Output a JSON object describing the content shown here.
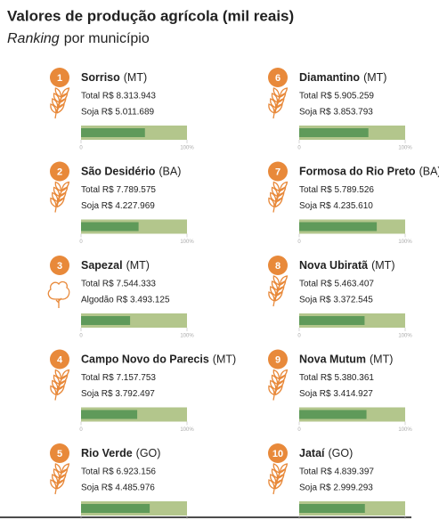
{
  "chart_data": {
    "type": "ranking",
    "title": "Valores de produção agrícola (mil reais)",
    "subtitle_em": "Ranking",
    "subtitle_rest": "por município",
    "xlim": [
      0,
      100
    ],
    "xticks": [
      0,
      {
        "value": 100,
        "label": "100%"
      }
    ],
    "bar_color": "#5f9a5a",
    "track_color": "#b3c68c",
    "badge_color": "#e8893a",
    "items": [
      {
        "rank": "1",
        "name": "Sorriso",
        "state": "(MT)",
        "total": "Total R$ 8.313.943",
        "crop": "Soja R$ 5.011.689",
        "share": 60.3
      },
      {
        "rank": "2",
        "name": "São Desidério",
        "state": "(BA)",
        "total": "Total R$ 7.789.575",
        "crop": "Soja R$ 4.227.969",
        "share": 54.3
      },
      {
        "rank": "3",
        "name": "Sapezal",
        "state": "(MT)",
        "total": "Total R$ 7.544.333",
        "crop": "Algodão R$ 3.493.125",
        "share": 46.3
      },
      {
        "rank": "4",
        "name": "Campo Novo do Parecis",
        "state": "(MT)",
        "total": "Total R$ 7.157.753",
        "crop": "Soja R$ 3.792.497",
        "share": 53.0
      },
      {
        "rank": "5",
        "name": "Rio Verde",
        "state": "(GO)",
        "total": "Total R$ 6.923.156",
        "crop": "Soja R$ 4.485.976",
        "share": 64.8
      },
      {
        "rank": "6",
        "name": "Diamantino",
        "state": "(MT)",
        "total": "Total R$ 5.905.259",
        "crop": "Soja R$ 3.853.793",
        "share": 65.3
      },
      {
        "rank": "7",
        "name": "Formosa do Rio Preto",
        "state": "(BA)",
        "total": "Total R$ 5.789.526",
        "crop": "Soja R$ 4.235.610",
        "share": 73.2
      },
      {
        "rank": "8",
        "name": "Nova Ubiratã",
        "state": "(MT)",
        "total": "Total R$ 5.463.407",
        "crop": "Soja R$ 3.372.545",
        "share": 61.7
      },
      {
        "rank": "9",
        "name": "Nova Mutum",
        "state": "(MT)",
        "total": "Total R$ 5.380.361",
        "crop": "Soja R$ 3.414.927",
        "share": 63.5
      },
      {
        "rank": "10",
        "name": "Jataí",
        "state": "(GO)",
        "total": "Total R$ 4.839.397",
        "crop": "Soja R$ 2.999.293",
        "share": 62.0
      }
    ]
  }
}
